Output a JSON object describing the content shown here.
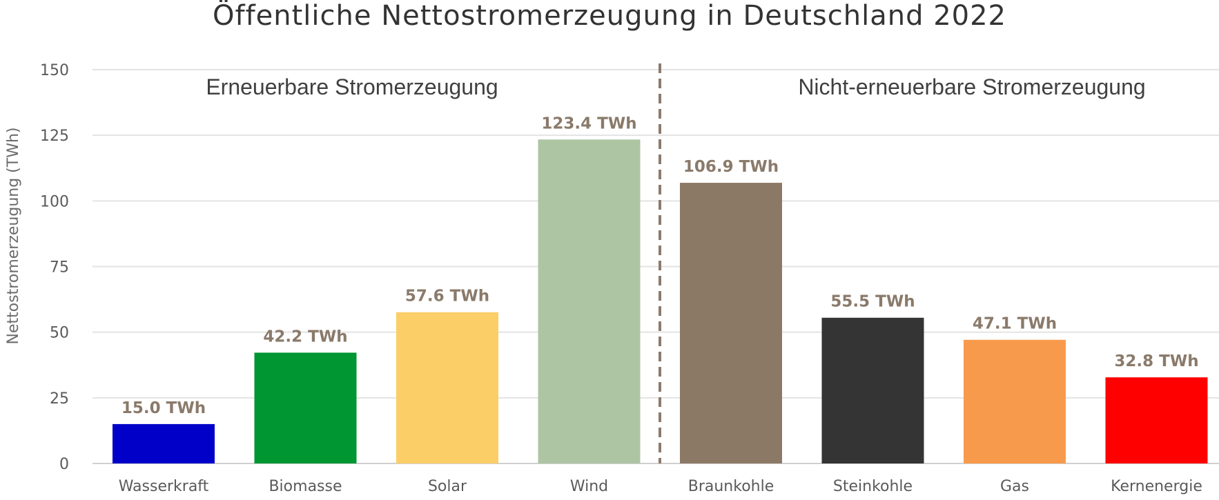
{
  "chart_data": {
    "type": "bar",
    "title": "Öffentliche Nettostromerzeugung in Deutschland 2022",
    "ylabel": "Nettostromerzeugung (TWh)",
    "xlabel": "",
    "ylim": [
      0,
      150
    ],
    "yticks": [
      0,
      25,
      50,
      75,
      100,
      125,
      150
    ],
    "grid": true,
    "categories": [
      "Wasserkraft",
      "Biomasse",
      "Solar",
      "Wind",
      "Braunkohle",
      "Steinkohle",
      "Gas",
      "Kernenergie"
    ],
    "values": [
      15.0,
      42.2,
      57.6,
      123.4,
      106.9,
      55.5,
      47.1,
      32.8
    ],
    "data_labels": [
      "15.0 TWh",
      "42.2 TWh",
      "57.6 TWh",
      "123.4 TWh",
      "106.9 TWh",
      "55.5 TWh",
      "47.1 TWh",
      "32.8 TWh"
    ],
    "colors": [
      "#0000c8",
      "#009632",
      "#fcce68",
      "#aec5a4",
      "#8c7965",
      "#343434",
      "#f89a4c",
      "#fe0000"
    ],
    "groups": [
      {
        "label": "Erneuerbare Stromerzeugung",
        "categories": [
          "Wasserkraft",
          "Biomasse",
          "Solar",
          "Wind"
        ]
      },
      {
        "label": "Nicht-erneuerbare Stromerzeugung",
        "categories": [
          "Braunkohle",
          "Steinkohle",
          "Gas",
          "Kernenergie"
        ]
      }
    ],
    "divider_color": "#8c7b6e"
  }
}
